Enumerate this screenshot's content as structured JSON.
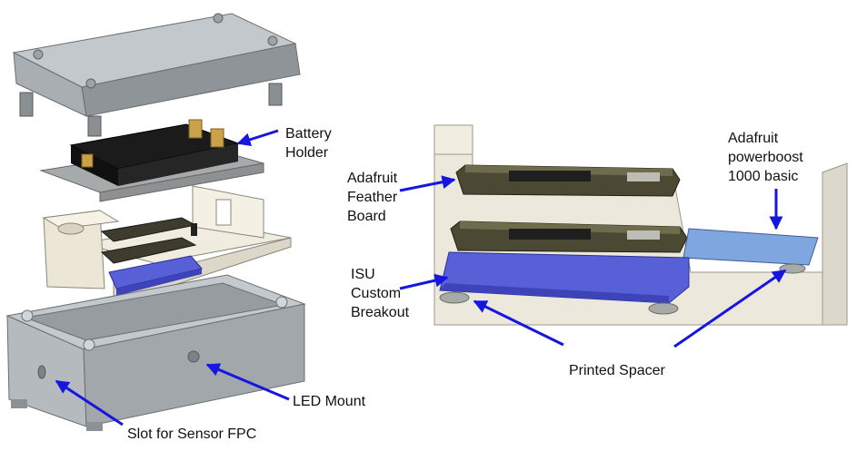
{
  "labels": {
    "battery_holder": [
      "Battery",
      "Holder"
    ],
    "led_mount": "LED Mount",
    "slot_sensor": "Slot for Sensor FPC",
    "feather_board": [
      "Adafruit",
      "Feather",
      "Board"
    ],
    "isu_breakout": [
      "ISU",
      "Custom",
      "Breakout"
    ],
    "powerboost": [
      "Adafruit",
      "powerboost",
      "1000 basic"
    ],
    "printed_spacer": "Printed Spacer"
  },
  "colors": {
    "arrow": "#1616e0",
    "lid": "#b9bec2",
    "enclosure": "#bcc1c5",
    "battery_holder": "#151515",
    "pcb_feather": "#3b3b2c",
    "breakout": "#5860d8",
    "powerboost": "#7fa6de",
    "spacer": "#a8aaa8",
    "tray": "#efeadd"
  }
}
